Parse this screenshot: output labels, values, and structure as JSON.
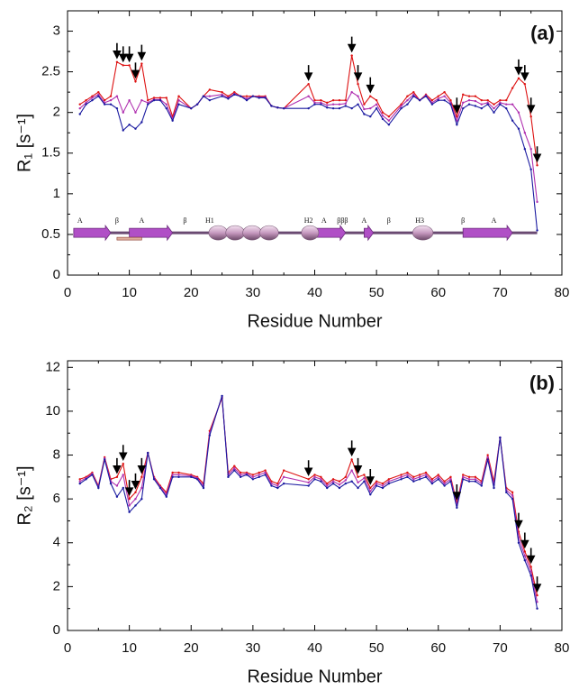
{
  "chart_data": [
    {
      "type": "line",
      "panel_label": "(a)",
      "xlabel": "Residue Number",
      "ylabel": "R₁ [s⁻¹]",
      "xlim": [
        0,
        80
      ],
      "xticks": [
        0,
        10,
        20,
        30,
        40,
        50,
        60,
        70,
        80
      ],
      "ylim": [
        0,
        3.25
      ],
      "yticks": [
        0,
        0.5,
        1,
        1.5,
        2,
        2.5,
        3
      ],
      "x": [
        2,
        3,
        4,
        5,
        6,
        7,
        8,
        9,
        10,
        11,
        12,
        13,
        14,
        15,
        16,
        17,
        18,
        20,
        21,
        22,
        23,
        25,
        26,
        27,
        28,
        29,
        30,
        31,
        32,
        33,
        34,
        35,
        39,
        40,
        41,
        42,
        43,
        44,
        45,
        46,
        47,
        48,
        49,
        50,
        51,
        52,
        54,
        55,
        56,
        57,
        58,
        59,
        60,
        61,
        62,
        63,
        64,
        65,
        66,
        67,
        68,
        69,
        70,
        71,
        72,
        73,
        74,
        75,
        76
      ],
      "series": [
        {
          "color": "#dd1111",
          "values": [
            2.1,
            2.15,
            2.2,
            2.25,
            2.15,
            2.2,
            2.62,
            2.58,
            2.58,
            2.38,
            2.6,
            2.15,
            2.18,
            2.18,
            2.18,
            1.95,
            2.2,
            2.05,
            2.1,
            2.2,
            2.28,
            2.25,
            2.2,
            2.25,
            2.2,
            2.2,
            2.2,
            2.2,
            2.2,
            2.08,
            2.06,
            2.05,
            2.35,
            2.15,
            2.15,
            2.12,
            2.15,
            2.15,
            2.15,
            2.7,
            2.35,
            2.1,
            2.2,
            2.15,
            2.0,
            1.95,
            2.1,
            2.2,
            2.25,
            2.15,
            2.22,
            2.15,
            2.2,
            2.25,
            2.15,
            1.95,
            2.22,
            2.2,
            2.2,
            2.15,
            2.15,
            2.1,
            2.15,
            2.15,
            2.3,
            2.42,
            2.35,
            1.95,
            1.35
          ]
        },
        {
          "color": "#b030b0",
          "values": [
            2.05,
            2.12,
            2.18,
            2.22,
            2.12,
            2.15,
            2.2,
            2.0,
            2.15,
            2.0,
            2.15,
            2.12,
            2.16,
            2.16,
            2.1,
            1.92,
            2.15,
            2.05,
            2.1,
            2.2,
            2.2,
            2.22,
            2.18,
            2.23,
            2.2,
            2.17,
            2.2,
            2.19,
            2.19,
            2.08,
            2.06,
            2.05,
            2.2,
            2.12,
            2.12,
            2.09,
            2.1,
            2.1,
            2.11,
            2.25,
            2.2,
            2.04,
            2.05,
            2.1,
            1.96,
            1.9,
            2.08,
            2.15,
            2.22,
            2.15,
            2.21,
            2.12,
            2.17,
            2.2,
            2.12,
            1.9,
            2.12,
            2.15,
            2.14,
            2.1,
            2.12,
            2.05,
            2.12,
            2.1,
            2.1,
            2.0,
            1.75,
            1.55,
            0.9
          ]
        },
        {
          "color": "#1a1aa0",
          "values": [
            1.98,
            2.1,
            2.15,
            2.2,
            2.1,
            2.1,
            2.05,
            1.78,
            1.85,
            1.8,
            1.88,
            2.1,
            2.15,
            2.15,
            2.05,
            1.9,
            2.1,
            2.05,
            2.1,
            2.2,
            2.15,
            2.2,
            2.17,
            2.22,
            2.2,
            2.15,
            2.2,
            2.18,
            2.18,
            2.08,
            2.06,
            2.05,
            2.05,
            2.1,
            2.1,
            2.06,
            2.05,
            2.05,
            2.08,
            2.05,
            2.1,
            1.98,
            1.95,
            2.05,
            1.92,
            1.85,
            2.05,
            2.1,
            2.2,
            2.15,
            2.2,
            2.1,
            2.15,
            2.15,
            2.1,
            1.85,
            2.05,
            2.1,
            2.08,
            2.05,
            2.1,
            2.0,
            2.1,
            2.05,
            1.9,
            1.8,
            1.55,
            1.3,
            0.55
          ]
        }
      ],
      "arrows_x": [
        8,
        9,
        10,
        11,
        12,
        39,
        46,
        47,
        49,
        63,
        73,
        74,
        75,
        76
      ],
      "structure_labels": [
        "A",
        "β",
        "A",
        "β",
        "H1",
        "H2",
        "A",
        "βββ",
        "A",
        "β",
        "H3",
        "β",
        "A"
      ]
    },
    {
      "type": "line",
      "panel_label": "(b)",
      "xlabel": "Residue Number",
      "ylabel": "R₂ [s⁻¹]",
      "xlim": [
        0,
        80
      ],
      "xticks": [
        0,
        10,
        20,
        30,
        40,
        50,
        60,
        70,
        80
      ],
      "ylim": [
        0,
        12.3
      ],
      "yticks": [
        0,
        2,
        4,
        6,
        8,
        10,
        12
      ],
      "x": [
        2,
        3,
        4,
        5,
        6,
        7,
        8,
        9,
        10,
        11,
        12,
        13,
        14,
        15,
        16,
        17,
        18,
        20,
        21,
        22,
        23,
        25,
        26,
        27,
        28,
        29,
        30,
        31,
        32,
        33,
        34,
        35,
        39,
        40,
        41,
        42,
        43,
        44,
        45,
        46,
        47,
        48,
        49,
        50,
        51,
        52,
        54,
        55,
        56,
        57,
        58,
        59,
        60,
        61,
        62,
        63,
        64,
        65,
        66,
        67,
        68,
        69,
        70,
        71,
        72,
        73,
        74,
        75,
        76
      ],
      "series": [
        {
          "color": "#dd1111",
          "values": [
            6.9,
            7.0,
            7.2,
            6.6,
            7.9,
            6.9,
            7.0,
            7.6,
            6.0,
            6.3,
            7.0,
            8.1,
            7.0,
            6.6,
            6.3,
            7.2,
            7.2,
            7.1,
            7.0,
            6.7,
            9.1,
            10.6,
            7.2,
            7.5,
            7.2,
            7.2,
            7.1,
            7.2,
            7.3,
            6.8,
            6.7,
            7.3,
            6.9,
            7.1,
            7.0,
            6.7,
            6.9,
            6.8,
            7.0,
            7.8,
            7.0,
            7.1,
            6.5,
            6.8,
            6.7,
            6.9,
            7.1,
            7.2,
            7.0,
            7.1,
            7.2,
            6.9,
            7.1,
            6.8,
            7.0,
            5.8,
            7.1,
            7.0,
            7.0,
            6.8,
            8.0,
            6.8,
            8.8,
            6.5,
            6.3,
            4.5,
            3.6,
            2.9,
            1.6
          ]
        },
        {
          "color": "#b030b0",
          "values": [
            6.8,
            6.95,
            7.15,
            6.55,
            7.85,
            6.8,
            6.6,
            7.1,
            5.7,
            6.0,
            6.5,
            8.1,
            6.95,
            6.55,
            6.2,
            7.1,
            7.1,
            7.05,
            6.95,
            6.6,
            9.0,
            10.65,
            7.1,
            7.4,
            7.1,
            7.15,
            7.0,
            7.1,
            7.2,
            6.7,
            6.6,
            7.0,
            6.75,
            7.0,
            6.9,
            6.6,
            6.8,
            6.65,
            6.85,
            7.3,
            6.75,
            6.95,
            6.35,
            6.7,
            6.6,
            6.8,
            7.0,
            7.1,
            6.9,
            7.0,
            7.1,
            6.8,
            7.0,
            6.7,
            6.9,
            5.7,
            7.0,
            6.9,
            6.9,
            6.7,
            7.9,
            6.65,
            8.8,
            6.4,
            6.15,
            4.25,
            3.4,
            2.7,
            1.3
          ]
        },
        {
          "color": "#1a1aa0",
          "values": [
            6.7,
            6.9,
            7.1,
            6.5,
            7.8,
            6.7,
            6.1,
            6.5,
            5.4,
            5.7,
            6.0,
            8.1,
            6.9,
            6.5,
            6.1,
            7.0,
            7.0,
            7.0,
            6.9,
            6.5,
            8.9,
            10.7,
            7.0,
            7.3,
            7.0,
            7.1,
            6.9,
            7.0,
            7.1,
            6.6,
            6.5,
            6.7,
            6.6,
            6.9,
            6.8,
            6.5,
            6.7,
            6.5,
            6.7,
            6.8,
            6.5,
            6.8,
            6.2,
            6.6,
            6.5,
            6.7,
            6.9,
            7.0,
            6.8,
            6.9,
            7.0,
            6.7,
            6.9,
            6.6,
            6.8,
            5.6,
            6.9,
            6.8,
            6.8,
            6.6,
            7.8,
            6.5,
            8.8,
            6.3,
            6.0,
            4.0,
            3.2,
            2.5,
            1.0
          ]
        }
      ],
      "arrows_x": [
        8,
        9,
        10,
        11,
        12,
        39,
        46,
        47,
        49,
        63,
        73,
        74,
        75,
        76
      ]
    }
  ]
}
